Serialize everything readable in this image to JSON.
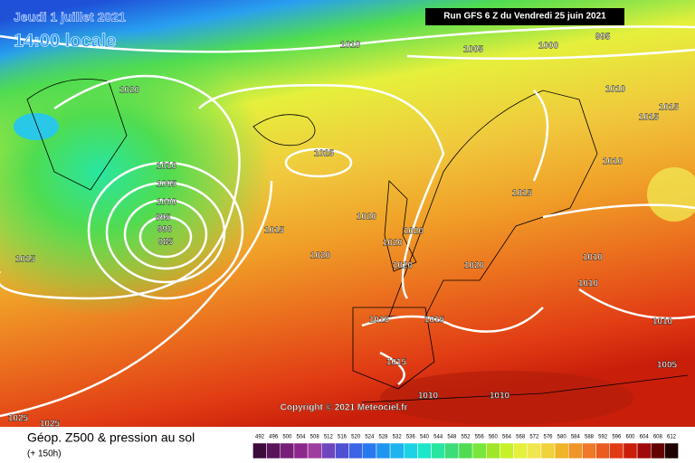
{
  "header": {
    "date": "Jeudi 1 juillet 2021",
    "time": "14:00 locale",
    "run": "Run GFS 6 Z du Vendredi 25 juin 2021"
  },
  "isobars": {
    "labels": [
      "1010",
      "1005",
      "1000",
      "995",
      "1020",
      "1010",
      "1015",
      "1015",
      "1025",
      "1010",
      "1005",
      "1000",
      "995",
      "990",
      "985",
      "1010",
      "1015",
      "1020",
      "1020",
      "1020",
      "1015",
      "1020",
      "1015",
      "1020",
      "1020",
      "1010",
      "1010",
      "1015",
      "1015",
      "1010",
      "1015",
      "1005",
      "1010",
      "1010",
      "1025",
      "1025"
    ]
  },
  "copyright": "Copyright © 2021 Meteociel.fr",
  "footer": {
    "title": "Géop. Z500 & pression au sol",
    "subtitle": "(+ 150h)"
  },
  "legend": {
    "values": [
      492,
      496,
      500,
      504,
      508,
      512,
      516,
      520,
      524,
      528,
      532,
      536,
      540,
      544,
      548,
      552,
      556,
      560,
      564,
      568,
      572,
      576,
      580,
      584,
      588,
      592,
      596,
      600,
      604,
      608,
      612
    ],
    "colors": [
      "#3c0a3c",
      "#5a145a",
      "#781e78",
      "#8c288c",
      "#a03ca0",
      "#6e46be",
      "#5050d2",
      "#3c64e6",
      "#2878f0",
      "#1e96f0",
      "#1eb4f0",
      "#1ed2e6",
      "#1ee6c8",
      "#28e6a0",
      "#3cdc78",
      "#50dc50",
      "#78e63c",
      "#a0e628",
      "#c8f028",
      "#e6f03c",
      "#f0e650",
      "#f0d23c",
      "#f0b428",
      "#f09628",
      "#f07828",
      "#eb5a1e",
      "#e13c14",
      "#c81e0a",
      "#a00a0a",
      "#640000",
      "#1e0000"
    ]
  }
}
